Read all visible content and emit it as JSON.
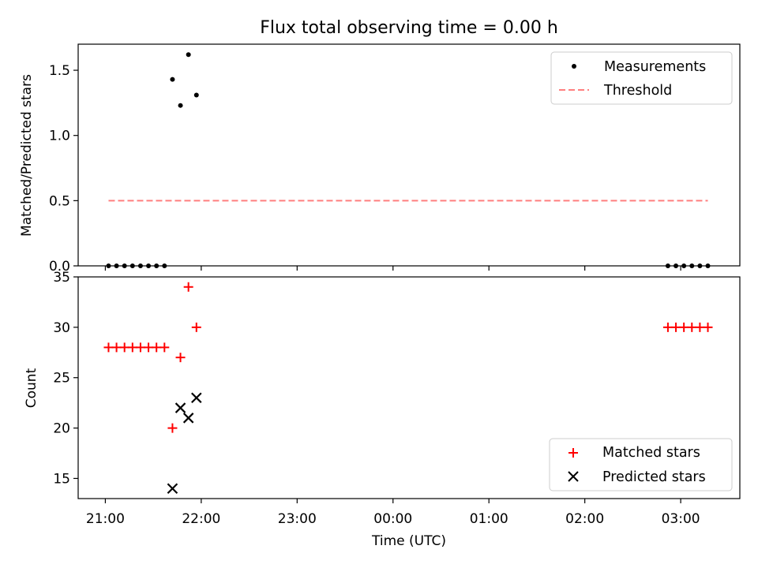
{
  "chart_data": [
    {
      "type": "scatter",
      "title": "Flux total observing time = 0.00 h",
      "xlabel": "",
      "ylabel": "Matched/Predicted stars",
      "ylim": [
        0,
        1.7
      ],
      "yticks": [
        "0.0",
        "0.5",
        "1.0",
        "1.5"
      ],
      "xlim": [
        "20:43",
        "03:37"
      ],
      "legend": "top-right",
      "grid": false,
      "series": [
        {
          "name": "Measurements",
          "marker": "dot",
          "color": "#000000",
          "points": [
            [
              "21:02",
              0
            ],
            [
              "21:07",
              0
            ],
            [
              "21:12",
              0
            ],
            [
              "21:17",
              0
            ],
            [
              "21:22",
              0
            ],
            [
              "21:27",
              0
            ],
            [
              "21:32",
              0
            ],
            [
              "21:37",
              0
            ],
            [
              "21:42",
              1.43
            ],
            [
              "21:47",
              1.23
            ],
            [
              "21:52",
              1.62
            ],
            [
              "21:57",
              1.31
            ],
            [
              "02:52",
              0
            ],
            [
              "02:57",
              0
            ],
            [
              "03:02",
              0
            ],
            [
              "03:07",
              0
            ],
            [
              "03:12",
              0
            ],
            [
              "03:17",
              0
            ]
          ]
        },
        {
          "name": "Threshold",
          "marker": "dashed-line",
          "color": "#ff7f7f",
          "points": [
            [
              "21:02",
              0.5
            ],
            [
              "03:17",
              0.5
            ]
          ]
        }
      ]
    },
    {
      "type": "scatter",
      "xlabel": "Time (UTC)",
      "ylabel": "Count",
      "ylim": [
        13,
        35
      ],
      "yticks": [
        "15",
        "20",
        "25",
        "30",
        "35"
      ],
      "xlim": [
        "20:43",
        "03:37"
      ],
      "xticks": [
        "21:00",
        "22:00",
        "23:00",
        "00:00",
        "01:00",
        "02:00",
        "03:00"
      ],
      "legend": "bottom-right",
      "grid": false,
      "series": [
        {
          "name": "Matched stars",
          "marker": "plus",
          "color": "#ff0000",
          "points": [
            [
              "21:02",
              28
            ],
            [
              "21:07",
              28
            ],
            [
              "21:12",
              28
            ],
            [
              "21:17",
              28
            ],
            [
              "21:22",
              28
            ],
            [
              "21:27",
              28
            ],
            [
              "21:32",
              28
            ],
            [
              "21:37",
              28
            ],
            [
              "21:42",
              20
            ],
            [
              "21:47",
              27
            ],
            [
              "21:52",
              34
            ],
            [
              "21:57",
              30
            ],
            [
              "02:52",
              30
            ],
            [
              "02:57",
              30
            ],
            [
              "03:02",
              30
            ],
            [
              "03:07",
              30
            ],
            [
              "03:12",
              30
            ],
            [
              "03:17",
              30
            ]
          ]
        },
        {
          "name": "Predicted stars",
          "marker": "x",
          "color": "#000000",
          "points": [
            [
              "21:42",
              14
            ],
            [
              "21:47",
              22
            ],
            [
              "21:52",
              21
            ],
            [
              "21:57",
              23
            ]
          ]
        }
      ]
    }
  ]
}
